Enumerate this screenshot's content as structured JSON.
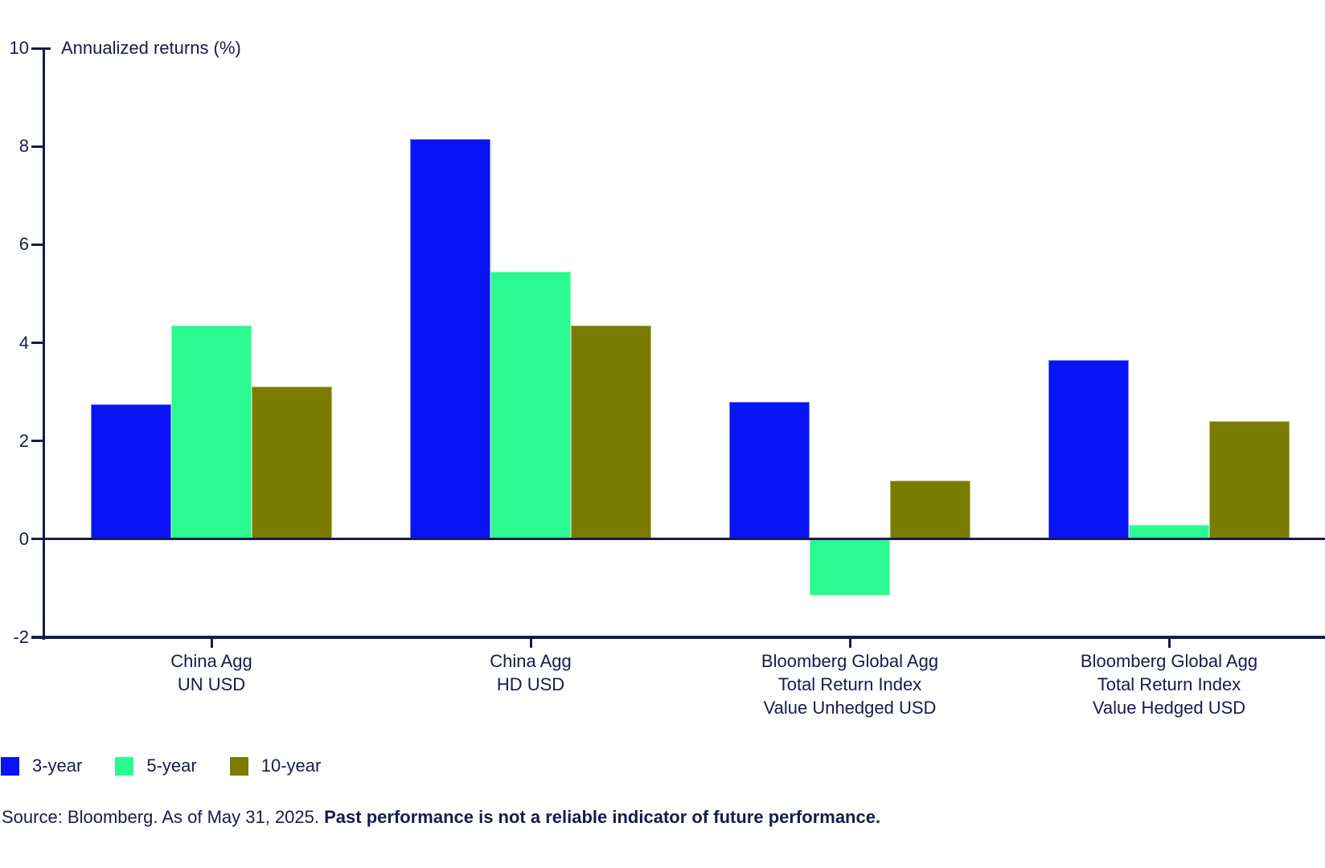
{
  "chart_data": {
    "type": "bar",
    "title": "",
    "axis_label": "Annualized returns (%)",
    "ylabel": "Annualized returns (%)",
    "xlabel": "",
    "ylim": [
      -2,
      10
    ],
    "yticks": [
      10,
      8,
      6,
      4,
      2,
      0,
      -2
    ],
    "grid": false,
    "legend_position": "bottom-left",
    "categories": [
      "China Agg\nUN USD",
      "China Agg\nHD USD",
      "Bloomberg Global Agg\nTotal Return Index\nValue Unhedged USD",
      "Bloomberg Global Agg\nTotal Return Index\nValue Hedged USD"
    ],
    "series": [
      {
        "name": "3-year",
        "color": "#0813f6",
        "values": [
          2.75,
          8.15,
          2.8,
          3.65
        ]
      },
      {
        "name": "5-year",
        "color": "#2afa90",
        "values": [
          4.35,
          5.45,
          -1.15,
          0.3
        ]
      },
      {
        "name": "10-year",
        "color": "#7a7c00",
        "values": [
          3.1,
          4.35,
          1.2,
          2.4
        ]
      }
    ]
  },
  "source": {
    "normal": "Source: Bloomberg. As of May 31, 2025. ",
    "bold": "Past performance is not a reliable indicator of future performance."
  },
  "colors": {
    "text": "#171b4d",
    "axis": "#171b4d",
    "background": "#ffffff"
  }
}
